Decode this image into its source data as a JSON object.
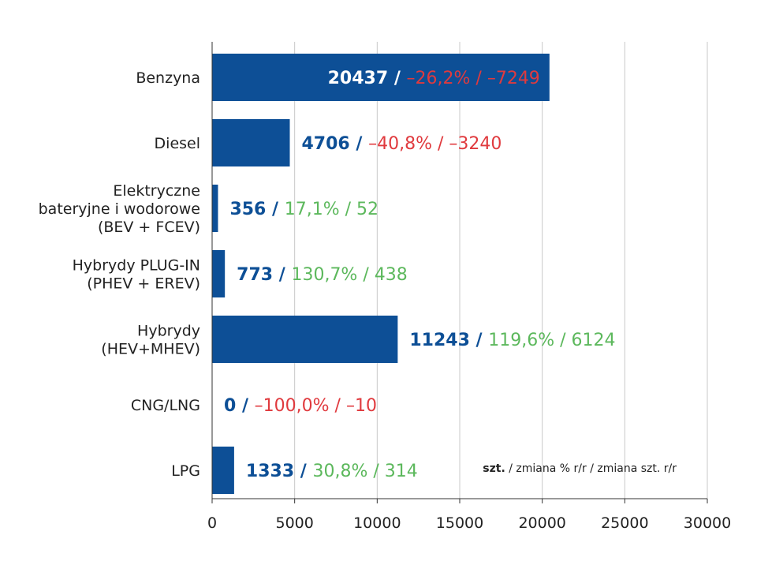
{
  "chart_data": {
    "type": "bar",
    "orientation": "horizontal",
    "categories": [
      [
        "Benzyna"
      ],
      [
        "Diesel"
      ],
      [
        "Elektryczne",
        "bateryjne i wodorowe",
        "(BEV + FCEV)"
      ],
      [
        "Hybrydy PLUG-IN",
        "(PHEV + EREV)"
      ],
      [
        "Hybrydy",
        "(HEV+MHEV)"
      ],
      [
        "CNG/LNG"
      ],
      [
        "LPG"
      ]
    ],
    "values": [
      20437,
      4706,
      356,
      773,
      11243,
      0,
      1333
    ],
    "labels": [
      {
        "units": "20437",
        "rest": "–26,2% / –7249",
        "sign": "negative"
      },
      {
        "units": "4706",
        "rest": "–40,8% / –3240",
        "sign": "negative"
      },
      {
        "units": "356",
        "rest": "17,1% / 52",
        "sign": "positive"
      },
      {
        "units": "773",
        "rest": "130,7% / 438",
        "sign": "positive"
      },
      {
        "units": "11243",
        "rest": "119,6% / 6124",
        "sign": "positive"
      },
      {
        "units": "0",
        "rest": "–100,0% / –10",
        "sign": "negative"
      },
      {
        "units": "1333",
        "rest": "30,8% / 314",
        "sign": "positive"
      }
    ],
    "separator": " / ",
    "xlim": [
      0,
      30000
    ],
    "xticks": [
      0,
      5000,
      10000,
      15000,
      20000,
      25000,
      30000
    ],
    "grid": "vertical",
    "legend": {
      "bold": "szt.",
      "rest": " / zmiana % r/r / zmiana szt. r/r",
      "placement": "bottom-right"
    },
    "title": "",
    "xlabel": "",
    "ylabel": ""
  },
  "colors": {
    "bar": "#0d4f96",
    "units_text": "#0d4f96",
    "negative": "#e03a3e",
    "positive": "#5cb85c",
    "grid": "#c8c8c8",
    "axis": "#333333"
  }
}
